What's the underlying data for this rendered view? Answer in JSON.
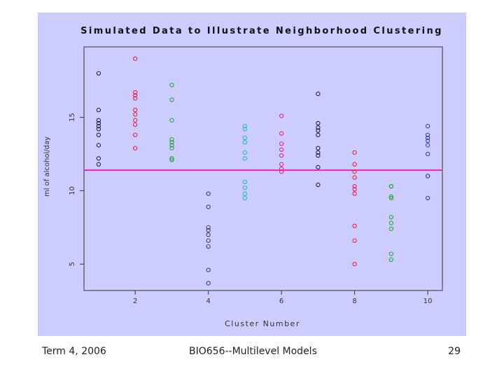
{
  "footer": {
    "left": "Term 4, 2006",
    "center": "BIO656--Multilevel Models",
    "right": "29"
  },
  "colors": {
    "background": "#ccccff",
    "reference_line": "#ee22cc",
    "axis": "#333333"
  },
  "chart_data": {
    "type": "scatter",
    "title": "Simulated Data to Illustrate Neighborhood Clustering",
    "xlabel": "Cluster Number",
    "ylabel": "ml of alcohol/day",
    "xlim": [
      0.6,
      10.4
    ],
    "ylim": [
      3.2,
      19.8
    ],
    "xticks": [
      2,
      4,
      6,
      8,
      10
    ],
    "yticks": [
      5,
      10,
      15
    ],
    "grid": false,
    "reference_line": 11.4,
    "series": [
      {
        "cluster": 1,
        "color": "#222244",
        "values": [
          18.0,
          15.5,
          14.8,
          14.6,
          14.4,
          14.2,
          13.8,
          13.1,
          12.2,
          11.8
        ]
      },
      {
        "cluster": 2,
        "color": "#ee2244",
        "values": [
          19.0,
          16.7,
          16.5,
          16.3,
          15.5,
          15.2,
          14.8,
          14.5,
          13.8,
          12.9
        ]
      },
      {
        "cluster": 3,
        "color": "#22aa33",
        "values": [
          17.2,
          16.2,
          14.8,
          13.5,
          13.3,
          13.1,
          12.9,
          12.2,
          12.1
        ]
      },
      {
        "cluster": 4,
        "color": "#334477",
        "values": [
          9.8,
          8.9,
          7.5,
          7.3,
          7.0,
          6.6,
          6.2,
          4.6,
          3.7
        ]
      },
      {
        "cluster": 5,
        "color": "#22bbcc",
        "values": [
          14.4,
          14.2,
          13.6,
          13.3,
          12.6,
          12.2,
          10.6,
          10.2,
          9.8,
          9.5
        ]
      },
      {
        "cluster": 6,
        "color": "#ee2288",
        "values": [
          15.1,
          13.9,
          13.2,
          12.8,
          12.4,
          11.8,
          11.5,
          11.3
        ]
      },
      {
        "cluster": 7,
        "color": "#222244",
        "values": [
          16.6,
          14.6,
          14.3,
          14.1,
          13.8,
          12.9,
          12.6,
          12.4,
          11.6,
          10.4
        ]
      },
      {
        "cluster": 8,
        "color": "#ee2244",
        "values": [
          12.6,
          11.8,
          11.3,
          10.9,
          10.3,
          10.1,
          9.8,
          7.6,
          6.6,
          5.0
        ]
      },
      {
        "cluster": 9,
        "color": "#22aa33",
        "values": [
          10.3,
          10.3,
          9.6,
          9.5,
          8.2,
          7.8,
          7.4,
          5.7,
          5.3
        ]
      },
      {
        "cluster": 10,
        "color": "#3344aa",
        "values": [
          14.4,
          13.8,
          13.6,
          13.4,
          13.1,
          12.5,
          11.0,
          11.0,
          9.5
        ]
      }
    ]
  }
}
